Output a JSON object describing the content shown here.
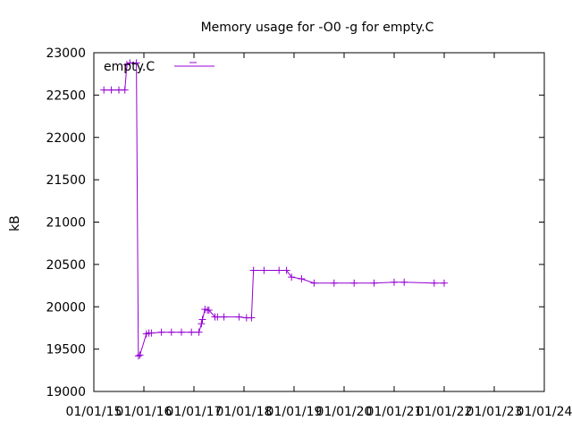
{
  "chart_data": {
    "type": "line",
    "title": "Memory usage for -O0 -g for empty.C",
    "xlabel": "",
    "ylabel": "kB",
    "ylim": [
      19000,
      23000
    ],
    "xlim": [
      0,
      9
    ],
    "yticks": [
      19000,
      19500,
      20000,
      20500,
      21000,
      21500,
      22000,
      22500,
      23000
    ],
    "xtick_labels": [
      "01/01/15",
      "01/01/16",
      "01/01/17",
      "01/01/18",
      "01/01/19",
      "01/01/20",
      "01/01/21",
      "01/01/22",
      "01/01/23",
      "01/01/24"
    ],
    "legend_position": "top-left",
    "grid": false,
    "series": [
      {
        "name": "empty.C",
        "color": "#9400d3",
        "x": [
          0.2,
          0.35,
          0.5,
          0.62,
          0.66,
          0.72,
          0.85,
          0.89,
          0.92,
          1.05,
          1.1,
          1.15,
          1.35,
          1.55,
          1.75,
          1.95,
          2.1,
          2.15,
          2.17,
          2.22,
          2.27,
          2.3,
          2.42,
          2.47,
          2.6,
          2.9,
          3.05,
          3.15,
          3.19,
          3.4,
          3.7,
          3.85,
          3.95,
          4.15,
          4.4,
          4.8,
          5.2,
          5.6,
          6.0,
          6.2,
          6.8,
          7.0
        ],
        "values": [
          22560,
          22560,
          22560,
          22560,
          22860,
          22880,
          22880,
          19420,
          19430,
          19680,
          19690,
          19690,
          19700,
          19700,
          19700,
          19700,
          19700,
          19800,
          19850,
          19970,
          19960,
          19960,
          19880,
          19880,
          19880,
          19880,
          19870,
          19870,
          20430,
          20430,
          20430,
          20430,
          20350,
          20330,
          20280,
          20280,
          20280,
          20280,
          20290,
          20290,
          20280,
          20280
        ]
      }
    ]
  }
}
